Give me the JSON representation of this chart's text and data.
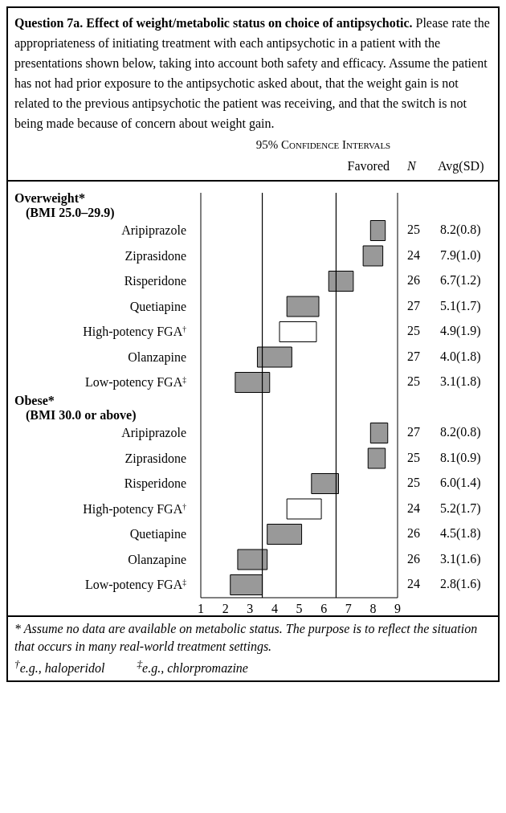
{
  "chart_data": [
    {
      "type": "bar",
      "orientation": "horizontal",
      "title": "Question 7a. Effect of weight/metabolic status on choice of antipsychotic.",
      "subtitle": "Please rate the appropriateness of initiating treatment with each antipsychotic in a patient with the presentations shown below, taking into account both safety and efficacy. Assume the patient has not had prior exposure to the antipsychotic asked about, that the weight gain is not related to the previous antipsychotic the patient was receiving, and that the switch is not being made because of concern about weight gain.",
      "xlabel": "95% Confidence Intervals",
      "categories": [
        null,
        "Aripiprazole",
        "Ziprasidone",
        "Risperidone",
        "Quetiapine",
        "High-potency FGA$^{†}$",
        "Olanzapine",
        "Low-potency FGA$^{‡}$",
        null,
        "Aripiprazole",
        "Ziprasidone",
        "Risperidone",
        "High-potency FGA$^{†}$",
        "Quetiapine",
        "Olanzapine",
        "Low-potency FGA$^{‡}$"
      ],
      "base": [
        null,
        7.9,
        7.6,
        6.2,
        4.5,
        4.2,
        3.3,
        2.4,
        null,
        7.9,
        7.8,
        5.5,
        4.5,
        3.7,
        2.5,
        2.2
      ],
      "values": [
        null,
        0.6,
        0.8,
        1.0,
        1.3,
        1.5,
        1.4,
        1.4,
        null,
        0.7,
        0.7,
        1.1,
        1.4,
        1.4,
        1.2,
        1.3
      ],
      "colors": [
        "#999999",
        "#999999",
        "#999999",
        "#999999",
        "#999999",
        "#ffffff",
        "#999999",
        "#999999",
        "#999999",
        "#999999",
        "#999999",
        "#999999",
        "#ffffff",
        "#999999",
        "#999999",
        "#999999"
      ],
      "xlim": [
        1,
        9
      ],
      "xticks": [
        1,
        2,
        3,
        4,
        5,
        6,
        7,
        8,
        9
      ],
      "ref_lines": [
        {
          "axis": "x",
          "value": 3.5
        },
        {
          "axis": "x",
          "value": 6.5
        }
      ],
      "annotations": [
        "Favored",
        "* Assume no data are available on metabolic status. The purpose is to reflect the situation that occurs in many real-world treatment settings.",
        "$^{†}$e.g., haloperidol",
        "$^{‡}$e.g., chlorpromazine",
        "Overweight*",
        "(BMI 25.0–29.9)",
        "Obese*",
        "(BMI 30.0 or above)"
      ]
    },
    {
      "type": "other",
      "annotations": [
        "N",
        "Avg(SD)",
        "25",
        "8.2(0.8)",
        "24",
        "7.9(1.0)",
        "26",
        "6.7(1.2)",
        "27",
        "5.1(1.7)",
        "25",
        "4.9(1.9)",
        "27",
        "4.0(1.8)",
        "25",
        "3.1(1.8)",
        "27",
        "8.2(0.8)",
        "25",
        "8.1(0.9)",
        "25",
        "6.0(1.4)",
        "24",
        "5.2(1.7)",
        "26",
        "4.5(1.8)",
        "26",
        "3.1(1.6)",
        "24",
        "2.8(1.6)"
      ]
    }
  ]
}
